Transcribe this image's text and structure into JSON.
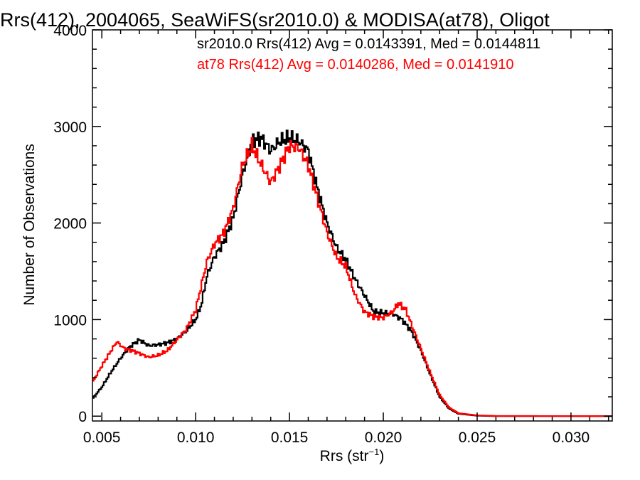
{
  "chart_data": {
    "type": "line",
    "title": "Rrs(412), 2004065, SeaWiFS(sr2010.0) & MODISA(at78), Oligot",
    "xlabel": "Rrs (str",
    "xlabel_sup": "−1",
    "xlabel_end": ")",
    "ylabel": "Number of Observations",
    "xlim": [
      0.0045,
      0.0322
    ],
    "ylim": [
      -50,
      4000
    ],
    "xticks": [
      0.005,
      0.01,
      0.015,
      0.02,
      0.025,
      0.03
    ],
    "xtick_labels": [
      "0.005",
      "0.010",
      "0.015",
      "0.020",
      "0.025",
      "0.030"
    ],
    "yticks": [
      0,
      1000,
      2000,
      3000,
      4000
    ],
    "ytick_labels": [
      "0",
      "1000",
      "2000",
      "3000",
      "4000"
    ],
    "grid": false,
    "annotations": [
      {
        "text": "sr2010.0 Rrs(412) Avg = 0.0143391, Med = 0.0144811",
        "color": "#000000"
      },
      {
        "text": "at78 Rrs(412) Avg = 0.0140286, Med = 0.0141910",
        "color": "#ff0000"
      }
    ],
    "series": [
      {
        "color": "#000000",
        "points": [
          [
            0.0045,
            180
          ],
          [
            0.005,
            300
          ],
          [
            0.0055,
            460
          ],
          [
            0.006,
            600
          ],
          [
            0.0065,
            720
          ],
          [
            0.007,
            790
          ],
          [
            0.0075,
            730
          ],
          [
            0.008,
            740
          ],
          [
            0.0085,
            760
          ],
          [
            0.009,
            800
          ],
          [
            0.0095,
            880
          ],
          [
            0.01,
            1000
          ],
          [
            0.0103,
            1150
          ],
          [
            0.0106,
            1450
          ],
          [
            0.011,
            1650
          ],
          [
            0.0115,
            1800
          ],
          [
            0.012,
            2050
          ],
          [
            0.0125,
            2500
          ],
          [
            0.013,
            2850
          ],
          [
            0.0135,
            2880
          ],
          [
            0.014,
            2750
          ],
          [
            0.0145,
            2850
          ],
          [
            0.015,
            2880
          ],
          [
            0.0155,
            2850
          ],
          [
            0.016,
            2750
          ],
          [
            0.0165,
            2350
          ],
          [
            0.017,
            2000
          ],
          [
            0.0175,
            1750
          ],
          [
            0.018,
            1620
          ],
          [
            0.0185,
            1420
          ],
          [
            0.019,
            1250
          ],
          [
            0.0195,
            1080
          ],
          [
            0.02,
            1070
          ],
          [
            0.0205,
            1060
          ],
          [
            0.021,
            1000
          ],
          [
            0.0215,
            880
          ],
          [
            0.022,
            680
          ],
          [
            0.0225,
            430
          ],
          [
            0.023,
            200
          ],
          [
            0.0235,
            80
          ],
          [
            0.024,
            25
          ],
          [
            0.025,
            5
          ],
          [
            0.026,
            0
          ],
          [
            0.0322,
            0
          ]
        ]
      },
      {
        "color": "#ff0000",
        "points": [
          [
            0.0045,
            350
          ],
          [
            0.005,
            520
          ],
          [
            0.0055,
            680
          ],
          [
            0.0058,
            770
          ],
          [
            0.0062,
            700
          ],
          [
            0.0066,
            680
          ],
          [
            0.007,
            650
          ],
          [
            0.0075,
            610
          ],
          [
            0.008,
            630
          ],
          [
            0.0085,
            680
          ],
          [
            0.009,
            790
          ],
          [
            0.0095,
            900
          ],
          [
            0.01,
            1100
          ],
          [
            0.0103,
            1350
          ],
          [
            0.0106,
            1600
          ],
          [
            0.011,
            1780
          ],
          [
            0.0115,
            1900
          ],
          [
            0.012,
            2150
          ],
          [
            0.0125,
            2600
          ],
          [
            0.013,
            2800
          ],
          [
            0.0135,
            2600
          ],
          [
            0.014,
            2420
          ],
          [
            0.0145,
            2600
          ],
          [
            0.015,
            2800
          ],
          [
            0.0155,
            2780
          ],
          [
            0.016,
            2600
          ],
          [
            0.0165,
            2250
          ],
          [
            0.017,
            1900
          ],
          [
            0.0175,
            1650
          ],
          [
            0.018,
            1550
          ],
          [
            0.0185,
            1250
          ],
          [
            0.019,
            1080
          ],
          [
            0.0195,
            1030
          ],
          [
            0.02,
            1020
          ],
          [
            0.0205,
            1080
          ],
          [
            0.0208,
            1170
          ],
          [
            0.0212,
            1100
          ],
          [
            0.0215,
            950
          ],
          [
            0.022,
            700
          ],
          [
            0.0225,
            450
          ],
          [
            0.023,
            220
          ],
          [
            0.0235,
            90
          ],
          [
            0.024,
            30
          ],
          [
            0.025,
            8
          ],
          [
            0.026,
            2
          ],
          [
            0.0322,
            0
          ]
        ]
      }
    ]
  }
}
